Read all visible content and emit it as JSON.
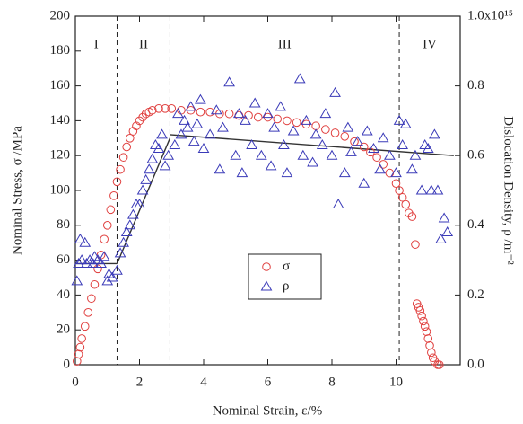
{
  "chart_data": {
    "type": "scatter",
    "x_label": "Nominal Strain, ε/%",
    "y_label": "Nominal Stress, σ /MPa",
    "y2_label": "Dislocation Density, ρ /m⁻²",
    "xlim": [
      0,
      12
    ],
    "xticks": [
      0,
      2,
      4,
      6,
      8,
      10
    ],
    "ylim": [
      0,
      200
    ],
    "yticks": [
      0,
      20,
      40,
      60,
      80,
      100,
      120,
      140,
      160,
      180,
      200
    ],
    "y2lim": [
      0,
      1.0
    ],
    "y2ticks": [
      {
        "value": 0,
        "label": "0.0"
      },
      0.2,
      0.4,
      0.6,
      0.8,
      {
        "value": 1.0,
        "label": "1.0x10¹⁵"
      }
    ],
    "legend": "center",
    "series": [
      {
        "name": "σ",
        "color": "#e0403f",
        "marker": "circle",
        "x": [
          0.05,
          0.1,
          0.15,
          0.2,
          0.3,
          0.4,
          0.5,
          0.6,
          0.7,
          0.8,
          0.9,
          1.0,
          1.1,
          1.2,
          1.3,
          1.4,
          1.5,
          1.6,
          1.7,
          1.8,
          1.9,
          2.0,
          2.1,
          2.2,
          2.3,
          2.4,
          2.6,
          2.8,
          3.0,
          3.3,
          3.6,
          3.9,
          4.2,
          4.5,
          4.8,
          5.1,
          5.4,
          5.7,
          6.0,
          6.3,
          6.6,
          6.9,
          7.2,
          7.5,
          7.8,
          8.1,
          8.4,
          8.7,
          9.0,
          9.2,
          9.4,
          9.6,
          9.8,
          10.0,
          10.1,
          10.2,
          10.3,
          10.4,
          10.5,
          10.6,
          10.65,
          10.7,
          10.75,
          10.8,
          10.85,
          10.9,
          10.95,
          11.0,
          11.05,
          11.1,
          11.15,
          11.2,
          11.3,
          11.35
        ],
        "values": [
          2,
          6,
          10,
          15,
          22,
          30,
          38,
          46,
          55,
          63,
          72,
          80,
          89,
          97,
          105,
          112,
          119,
          125,
          130,
          134,
          137,
          140,
          142,
          144,
          145,
          146,
          147,
          147,
          147,
          146,
          146,
          145,
          145,
          144,
          144,
          143,
          143,
          142,
          142,
          141,
          140,
          139,
          138,
          137,
          135,
          133,
          131,
          128,
          125,
          122,
          119,
          115,
          110,
          104,
          100,
          96,
          92,
          87,
          85,
          69,
          35,
          33,
          31,
          28,
          25,
          22,
          19,
          15,
          11,
          7,
          4,
          2,
          0,
          0
        ]
      },
      {
        "name": "ρ",
        "color": "#3a3ab8",
        "marker": "triangle",
        "axis": "y2",
        "x": [
          0.05,
          0.1,
          0.15,
          0.2,
          0.3,
          0.35,
          0.45,
          0.55,
          0.6,
          0.7,
          0.8,
          0.9,
          1.0,
          1.05,
          1.15,
          1.3,
          1.4,
          1.5,
          1.6,
          1.7,
          1.8,
          1.9,
          2.0,
          2.1,
          2.2,
          2.3,
          2.4,
          2.5,
          2.6,
          2.7,
          2.8,
          2.9,
          3.1,
          3.2,
          3.3,
          3.4,
          3.5,
          3.6,
          3.7,
          3.8,
          3.9,
          4.0,
          4.2,
          4.4,
          4.5,
          4.6,
          4.8,
          5.0,
          5.1,
          5.2,
          5.3,
          5.5,
          5.6,
          5.8,
          6.0,
          6.1,
          6.2,
          6.4,
          6.5,
          6.6,
          6.8,
          7.0,
          7.1,
          7.2,
          7.4,
          7.5,
          7.7,
          7.8,
          8.0,
          8.1,
          8.2,
          8.4,
          8.5,
          8.6,
          8.8,
          9.0,
          9.1,
          9.3,
          9.5,
          9.6,
          9.8,
          10.0,
          10.1,
          10.2,
          10.3,
          10.5,
          10.6,
          10.8,
          10.9,
          11.0,
          11.1,
          11.2,
          11.3,
          11.4,
          11.5,
          11.6
        ],
        "values": [
          0.24,
          0.29,
          0.36,
          0.3,
          0.35,
          0.29,
          0.3,
          0.29,
          0.31,
          0.3,
          0.29,
          0.31,
          0.24,
          0.26,
          0.25,
          0.27,
          0.32,
          0.35,
          0.38,
          0.4,
          0.43,
          0.46,
          0.46,
          0.5,
          0.53,
          0.56,
          0.59,
          0.63,
          0.62,
          0.66,
          0.57,
          0.6,
          0.63,
          0.72,
          0.66,
          0.7,
          0.68,
          0.74,
          0.64,
          0.69,
          0.76,
          0.62,
          0.66,
          0.73,
          0.56,
          0.68,
          0.81,
          0.6,
          0.72,
          0.55,
          0.7,
          0.63,
          0.75,
          0.6,
          0.72,
          0.57,
          0.68,
          0.74,
          0.63,
          0.55,
          0.67,
          0.82,
          0.6,
          0.7,
          0.58,
          0.66,
          0.63,
          0.72,
          0.6,
          0.78,
          0.46,
          0.55,
          0.68,
          0.61,
          0.64,
          0.52,
          0.67,
          0.62,
          0.56,
          0.65,
          0.6,
          0.55,
          0.7,
          0.63,
          0.69,
          0.56,
          0.6,
          0.5,
          0.63,
          0.62,
          0.5,
          0.66,
          0.5,
          0.36,
          0.42,
          0.38
        ]
      }
    ],
    "fit_lines": [
      {
        "color": "#333333",
        "axis": "y2",
        "x": [
          0,
          1.3
        ],
        "values": [
          0.29,
          0.29
        ]
      },
      {
        "color": "#333333",
        "axis": "y2",
        "x": [
          1.3,
          2.95
        ],
        "values": [
          0.29,
          0.65
        ]
      },
      {
        "color": "#333333",
        "axis": "y2",
        "x": [
          2.95,
          11.8
        ],
        "values": [
          0.66,
          0.6
        ]
      }
    ],
    "regions": {
      "labels": [
        "I",
        "II",
        "III",
        "IV"
      ],
      "boundaries": [
        1.3,
        2.95,
        10.1
      ]
    }
  }
}
